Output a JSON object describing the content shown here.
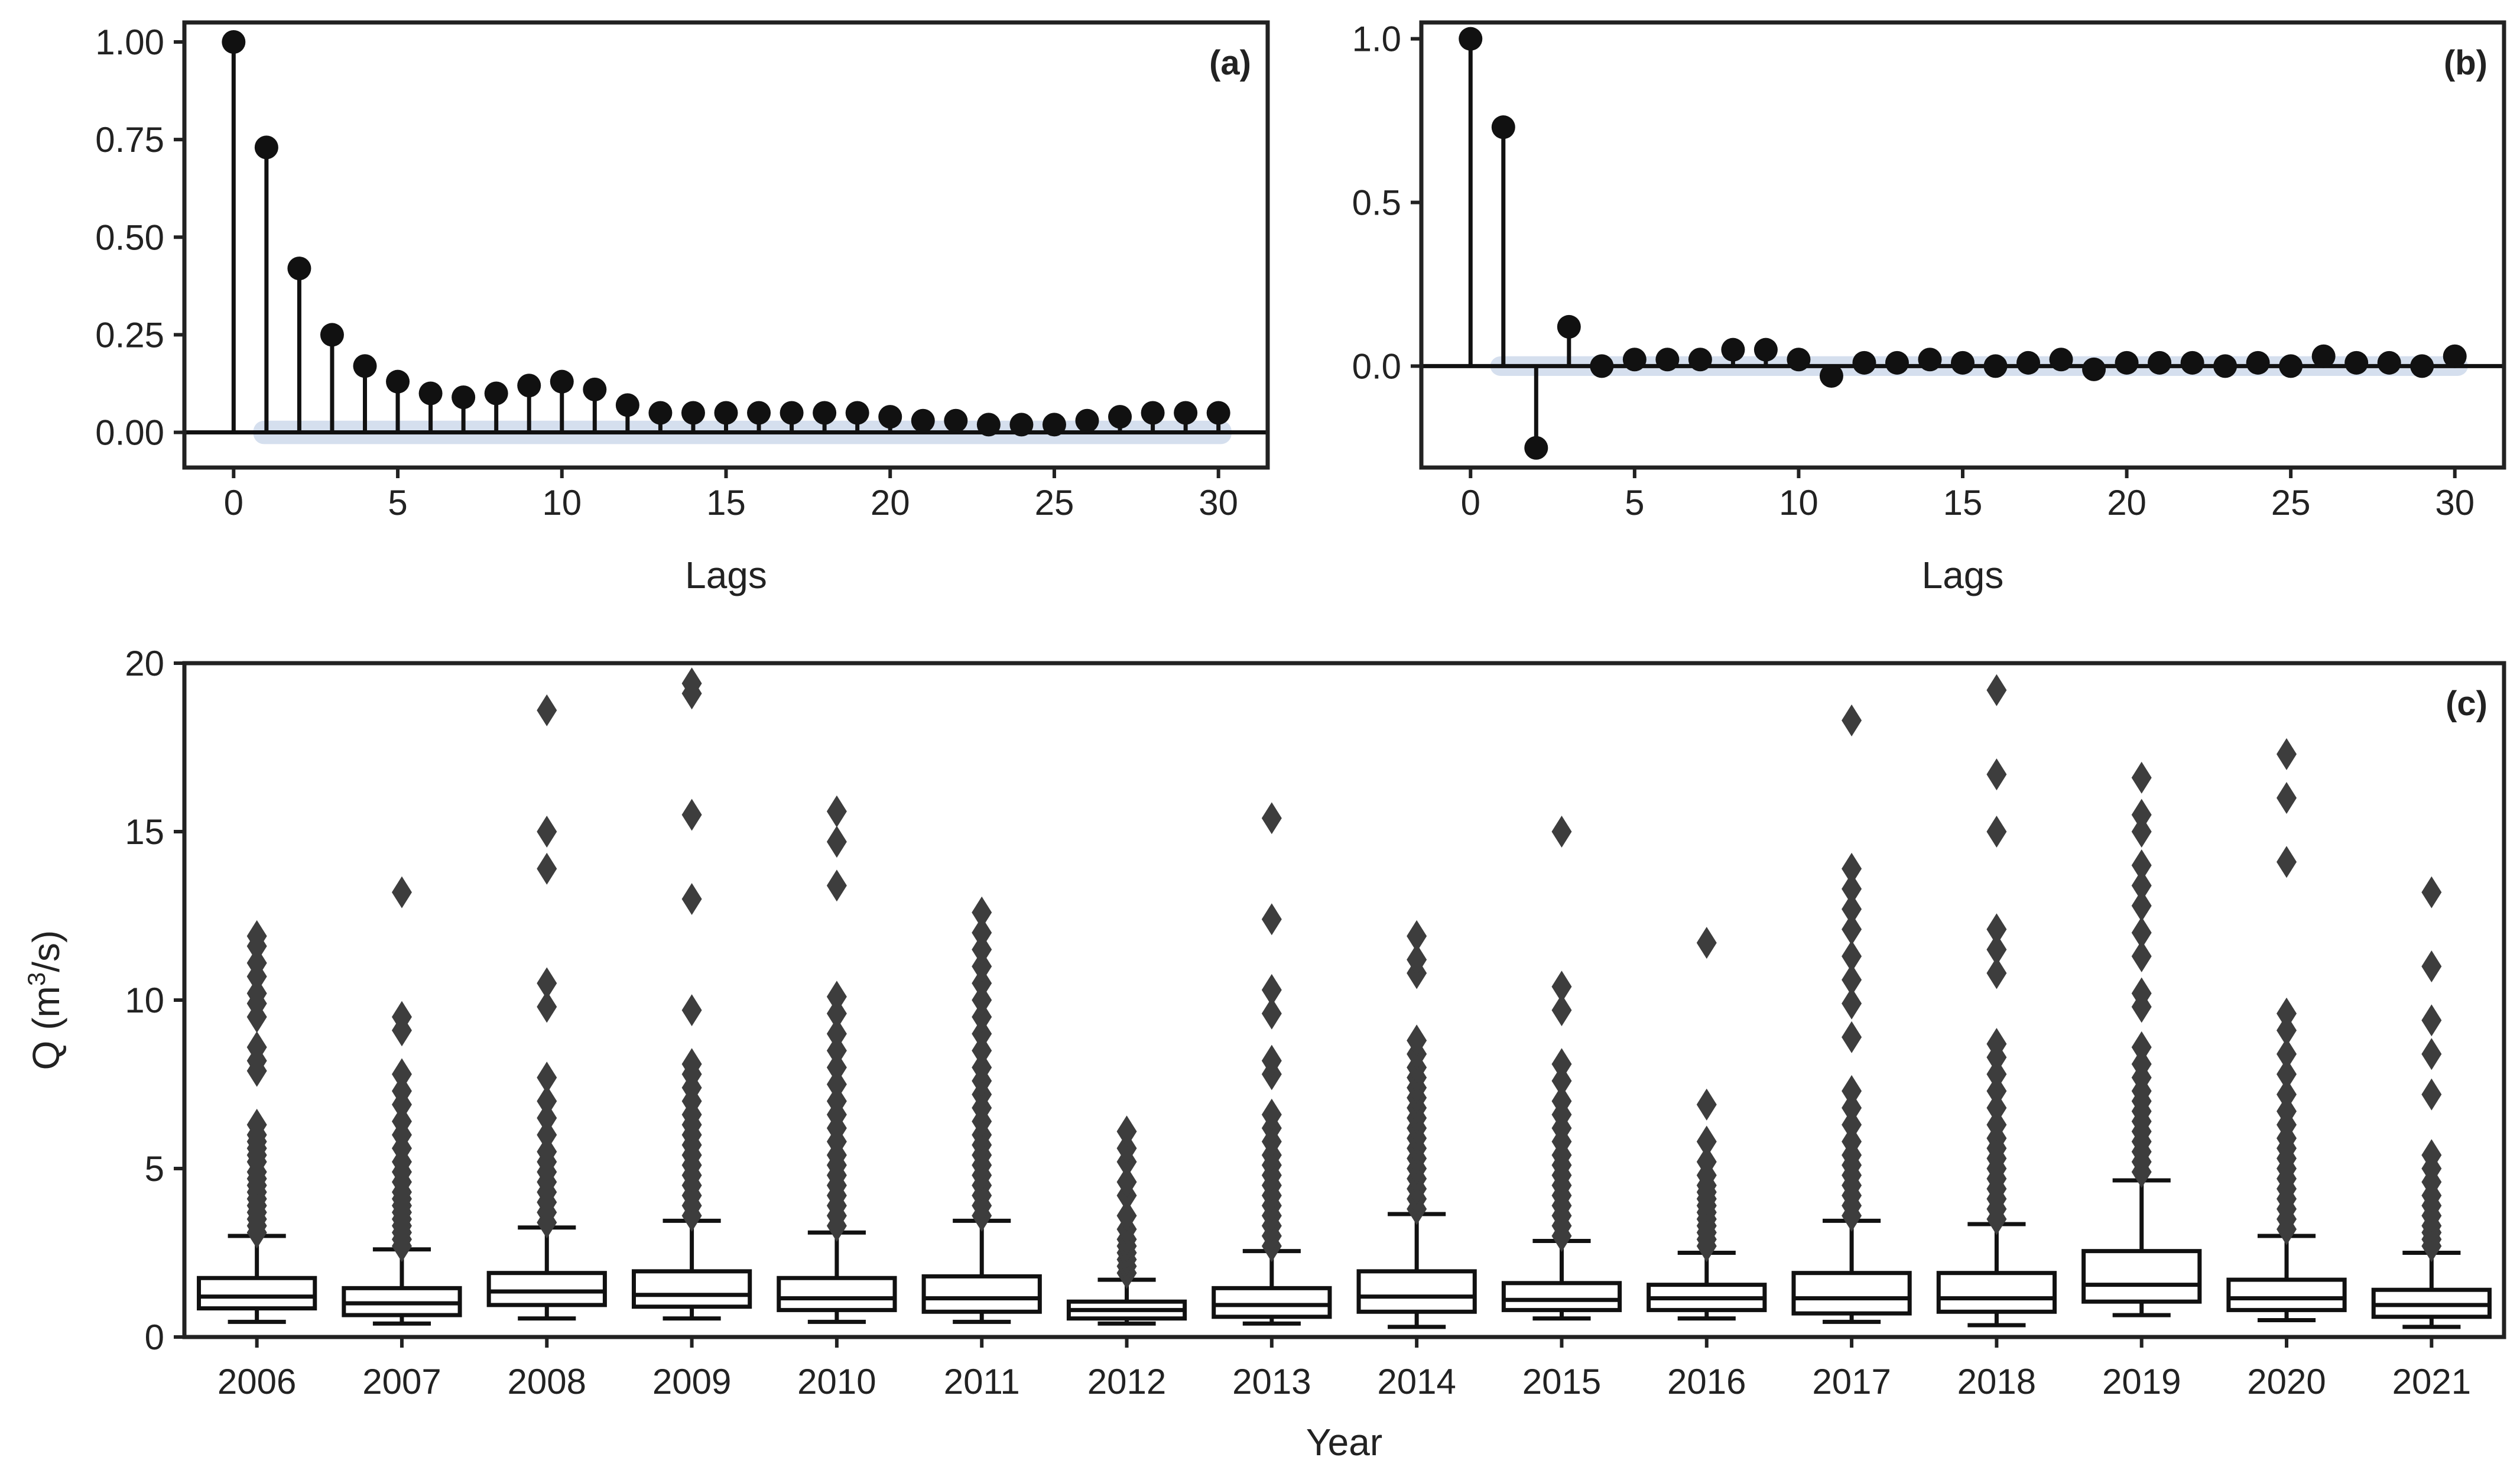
{
  "chart_data": [
    {
      "panel": "(a)",
      "type": "stem",
      "xlabel": "Lags",
      "ylabel": "",
      "xlim": [
        -1.5,
        31.5
      ],
      "ylim": [
        -0.09,
        1.05
      ],
      "xticks": [
        0,
        5,
        10,
        15,
        20,
        25,
        30
      ],
      "xtick_labels": [
        "0",
        "5",
        "10",
        "15",
        "20",
        "25",
        "30"
      ],
      "yticks": [
        0.0,
        0.25,
        0.5,
        0.75,
        1.0
      ],
      "ytick_labels": [
        "0.00",
        "0.25",
        "0.50",
        "0.75",
        "1.00"
      ],
      "lags": [
        0,
        1,
        2,
        3,
        4,
        5,
        6,
        7,
        8,
        9,
        10,
        11,
        12,
        13,
        14,
        15,
        16,
        17,
        18,
        19,
        20,
        21,
        22,
        23,
        24,
        25,
        26,
        27,
        28,
        29,
        30
      ],
      "values": [
        1.0,
        0.73,
        0.42,
        0.25,
        0.17,
        0.13,
        0.1,
        0.09,
        0.1,
        0.12,
        0.13,
        0.11,
        0.07,
        0.05,
        0.05,
        0.05,
        0.05,
        0.05,
        0.05,
        0.05,
        0.04,
        0.03,
        0.03,
        0.02,
        0.02,
        0.02,
        0.03,
        0.04,
        0.05,
        0.05,
        0.05
      ],
      "confidence_band": 0.03
    },
    {
      "panel": "(b)",
      "type": "stem",
      "xlabel": "Lags",
      "ylabel": "",
      "xlim": [
        -1.5,
        31.5
      ],
      "ylim": [
        -0.31,
        1.05
      ],
      "xticks": [
        0,
        5,
        10,
        15,
        20,
        25,
        30
      ],
      "xtick_labels": [
        "0",
        "5",
        "10",
        "15",
        "20",
        "25",
        "30"
      ],
      "yticks": [
        0.0,
        0.5,
        1.0
      ],
      "ytick_labels": [
        "0.0",
        "0.5",
        "1.0"
      ],
      "lags": [
        0,
        1,
        2,
        3,
        4,
        5,
        6,
        7,
        8,
        9,
        10,
        11,
        12,
        13,
        14,
        15,
        16,
        17,
        18,
        19,
        20,
        21,
        22,
        23,
        24,
        25,
        26,
        27,
        28,
        29,
        30
      ],
      "values": [
        1.0,
        0.73,
        -0.25,
        0.12,
        0.0,
        0.02,
        0.02,
        0.02,
        0.05,
        0.05,
        0.02,
        -0.03,
        0.01,
        0.01,
        0.02,
        0.01,
        0.0,
        0.01,
        0.02,
        -0.01,
        0.01,
        0.01,
        0.01,
        0.0,
        0.01,
        0.0,
        0.03,
        0.01,
        0.01,
        0.0,
        0.03
      ],
      "confidence_band": 0.03
    },
    {
      "panel": "(c)",
      "type": "box",
      "xlabel": "Year",
      "ylabel_prefix": "Q (m",
      "ylabel_sup": "3",
      "ylabel_suffix": "/s)",
      "ylim": [
        0,
        20
      ],
      "yticks": [
        0,
        5,
        10,
        15,
        20
      ],
      "ytick_labels": [
        "0",
        "5",
        "10",
        "15",
        "20"
      ],
      "categories": [
        "2006",
        "2007",
        "2008",
        "2009",
        "2010",
        "2011",
        "2012",
        "2013",
        "2014",
        "2015",
        "2016",
        "2017",
        "2018",
        "2019",
        "2020",
        "2021"
      ],
      "boxes": [
        {
          "whislo": 0.45,
          "q1": 0.85,
          "med": 1.2,
          "q3": 1.75,
          "whishi": 3.0,
          "fliers": [
            3.1,
            3.3,
            3.5,
            3.7,
            3.9,
            4.1,
            4.3,
            4.5,
            4.7,
            4.9,
            5.2,
            5.4,
            5.6,
            5.8,
            6.0,
            6.3,
            7.9,
            8.2,
            8.6,
            9.5,
            9.9,
            10.2,
            10.7,
            11.1,
            11.6,
            11.9
          ]
        },
        {
          "whislo": 0.4,
          "q1": 0.65,
          "med": 1.0,
          "q3": 1.45,
          "whishi": 2.6,
          "fliers": [
            2.7,
            2.9,
            3.1,
            3.3,
            3.5,
            3.7,
            3.9,
            4.1,
            4.3,
            4.6,
            4.9,
            5.2,
            5.6,
            6.0,
            6.4,
            6.9,
            7.3,
            7.8,
            9.1,
            9.5,
            13.2
          ]
        },
        {
          "whislo": 0.55,
          "q1": 0.95,
          "med": 1.35,
          "q3": 1.9,
          "whishi": 3.25,
          "fliers": [
            3.4,
            3.7,
            4.0,
            4.3,
            4.6,
            4.9,
            5.2,
            5.5,
            6.0,
            6.5,
            7.0,
            7.7,
            9.8,
            10.5,
            13.9,
            15.0,
            18.6
          ]
        },
        {
          "whislo": 0.55,
          "q1": 0.9,
          "med": 1.25,
          "q3": 1.95,
          "whishi": 3.45,
          "fliers": [
            3.6,
            3.9,
            4.2,
            4.5,
            4.8,
            5.1,
            5.4,
            5.7,
            6.0,
            6.3,
            6.6,
            7.0,
            7.4,
            7.8,
            8.1,
            9.7,
            13.0,
            15.5,
            19.1,
            19.4
          ]
        },
        {
          "whislo": 0.45,
          "q1": 0.8,
          "med": 1.15,
          "q3": 1.75,
          "whishi": 3.1,
          "fliers": [
            3.3,
            3.6,
            3.9,
            4.2,
            4.5,
            4.8,
            5.1,
            5.4,
            5.8,
            6.2,
            6.6,
            7.0,
            7.5,
            8.0,
            8.5,
            9.0,
            9.6,
            10.1,
            13.4,
            14.7,
            15.6
          ]
        },
        {
          "whislo": 0.45,
          "q1": 0.75,
          "med": 1.15,
          "q3": 1.8,
          "whishi": 3.45,
          "fliers": [
            3.6,
            3.9,
            4.2,
            4.5,
            4.8,
            5.1,
            5.4,
            5.7,
            6.0,
            6.4,
            6.8,
            7.2,
            7.6,
            8.0,
            8.5,
            9.0,
            9.5,
            10.0,
            10.5,
            11.0,
            11.5,
            12.0,
            12.6
          ]
        },
        {
          "whislo": 0.4,
          "q1": 0.55,
          "med": 0.8,
          "q3": 1.05,
          "whishi": 1.7,
          "fliers": [
            1.9,
            2.1,
            2.3,
            2.5,
            2.7,
            2.9,
            3.2,
            3.6,
            4.2,
            4.6,
            5.2,
            5.6,
            6.1
          ]
        },
        {
          "whislo": 0.4,
          "q1": 0.6,
          "med": 0.95,
          "q3": 1.45,
          "whishi": 2.55,
          "fliers": [
            2.7,
            3.0,
            3.3,
            3.6,
            3.9,
            4.2,
            4.5,
            4.8,
            5.1,
            5.4,
            5.8,
            6.2,
            6.6,
            7.8,
            8.2,
            9.6,
            10.3,
            12.4,
            15.4
          ]
        },
        {
          "whislo": 0.3,
          "q1": 0.75,
          "med": 1.2,
          "q3": 1.95,
          "whishi": 3.65,
          "fliers": [
            3.8,
            4.1,
            4.4,
            4.7,
            5.0,
            5.3,
            5.6,
            5.9,
            6.2,
            6.5,
            6.8,
            7.1,
            7.4,
            7.7,
            8.0,
            8.4,
            8.8,
            10.8,
            11.2,
            11.9
          ]
        },
        {
          "whislo": 0.55,
          "q1": 0.8,
          "med": 1.1,
          "q3": 1.6,
          "whishi": 2.85,
          "fliers": [
            3.0,
            3.3,
            3.6,
            3.9,
            4.2,
            4.5,
            4.8,
            5.1,
            5.4,
            5.8,
            6.2,
            6.6,
            7.0,
            7.6,
            8.1,
            9.7,
            10.4,
            15.0
          ]
        },
        {
          "whislo": 0.55,
          "q1": 0.8,
          "med": 1.15,
          "q3": 1.55,
          "whishi": 2.5,
          "fliers": [
            2.7,
            2.9,
            3.1,
            3.3,
            3.5,
            3.7,
            3.9,
            4.1,
            4.3,
            4.5,
            4.8,
            5.2,
            5.8,
            6.9,
            11.7
          ]
        },
        {
          "whislo": 0.45,
          "q1": 0.7,
          "med": 1.15,
          "q3": 1.9,
          "whishi": 3.45,
          "fliers": [
            3.6,
            3.9,
            4.2,
            4.5,
            4.8,
            5.1,
            5.4,
            5.8,
            6.3,
            6.8,
            7.3,
            8.9,
            9.9,
            10.6,
            11.3,
            12.1,
            12.7,
            13.3,
            13.9,
            18.3
          ]
        },
        {
          "whislo": 0.35,
          "q1": 0.75,
          "med": 1.15,
          "q3": 1.9,
          "whishi": 3.35,
          "fliers": [
            3.5,
            3.8,
            4.1,
            4.4,
            4.7,
            5.0,
            5.3,
            5.6,
            5.9,
            6.3,
            6.8,
            7.3,
            7.8,
            8.3,
            8.7,
            10.8,
            11.5,
            12.1,
            15.0,
            16.7,
            19.2
          ]
        },
        {
          "whislo": 0.65,
          "q1": 1.05,
          "med": 1.55,
          "q3": 2.55,
          "whishi": 4.65,
          "fliers": [
            4.9,
            5.2,
            5.5,
            5.8,
            6.1,
            6.4,
            6.7,
            7.0,
            7.3,
            7.7,
            8.1,
            8.6,
            9.8,
            10.2,
            11.3,
            12.0,
            12.8,
            13.4,
            14.0,
            15.0,
            15.5,
            16.6
          ]
        },
        {
          "whislo": 0.5,
          "q1": 0.8,
          "med": 1.15,
          "q3": 1.7,
          "whishi": 3.0,
          "fliers": [
            3.2,
            3.5,
            3.8,
            4.1,
            4.4,
            4.7,
            5.0,
            5.3,
            5.6,
            5.9,
            6.3,
            6.7,
            7.2,
            7.8,
            8.4,
            9.1,
            9.6,
            14.1,
            16.0,
            17.3
          ]
        },
        {
          "whislo": 0.3,
          "q1": 0.6,
          "med": 0.95,
          "q3": 1.4,
          "whishi": 2.5,
          "fliers": [
            2.7,
            2.9,
            3.1,
            3.3,
            3.6,
            3.9,
            4.2,
            4.6,
            5.0,
            5.4,
            7.2,
            8.4,
            9.4,
            11.0,
            13.2
          ]
        }
      ]
    }
  ]
}
